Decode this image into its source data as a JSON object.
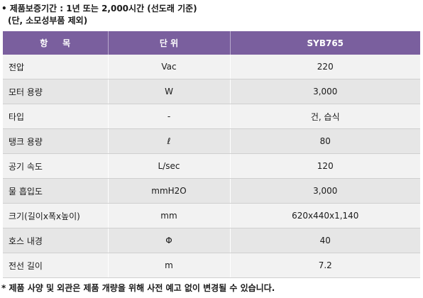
{
  "notes": {
    "top_line1": "• 제품보증기간 : 1년 또는 2,000시간 (선도래 기준)",
    "top_line2": "(단, 소모성부품 제외)",
    "bottom": "* 제품 사양 및 외관은 제품 개량을 위해 사전 예고 없이 변경될 수 있습니다."
  },
  "table": {
    "headers": {
      "item": "항     목",
      "unit": "단 위",
      "value": "SYB765"
    },
    "rows": [
      {
        "item": "전압",
        "unit": "Vac",
        "value": "220"
      },
      {
        "item": "모터 용량",
        "unit": "W",
        "value": "3,000"
      },
      {
        "item": "타입",
        "unit": "-",
        "value": "건, 습식"
      },
      {
        "item": "탱크 용량",
        "unit": "ℓ",
        "value": "80"
      },
      {
        "item": "공기 속도",
        "unit": "L/sec",
        "value": "120"
      },
      {
        "item": "물 흡입도",
        "unit": "mmH2O",
        "value": "3,000"
      },
      {
        "item": "크기(길이x폭x높이)",
        "unit": "mm",
        "value": "620x440x1,140"
      },
      {
        "item": "호스 내경",
        "unit": "Φ",
        "value": "40"
      },
      {
        "item": "전선 길이",
        "unit": "m",
        "value": "7.2"
      }
    ]
  },
  "colors": {
    "header_bg": "#7a5f9e",
    "row_light": "#f2f2f2",
    "row_dark": "#e6e6e6"
  }
}
